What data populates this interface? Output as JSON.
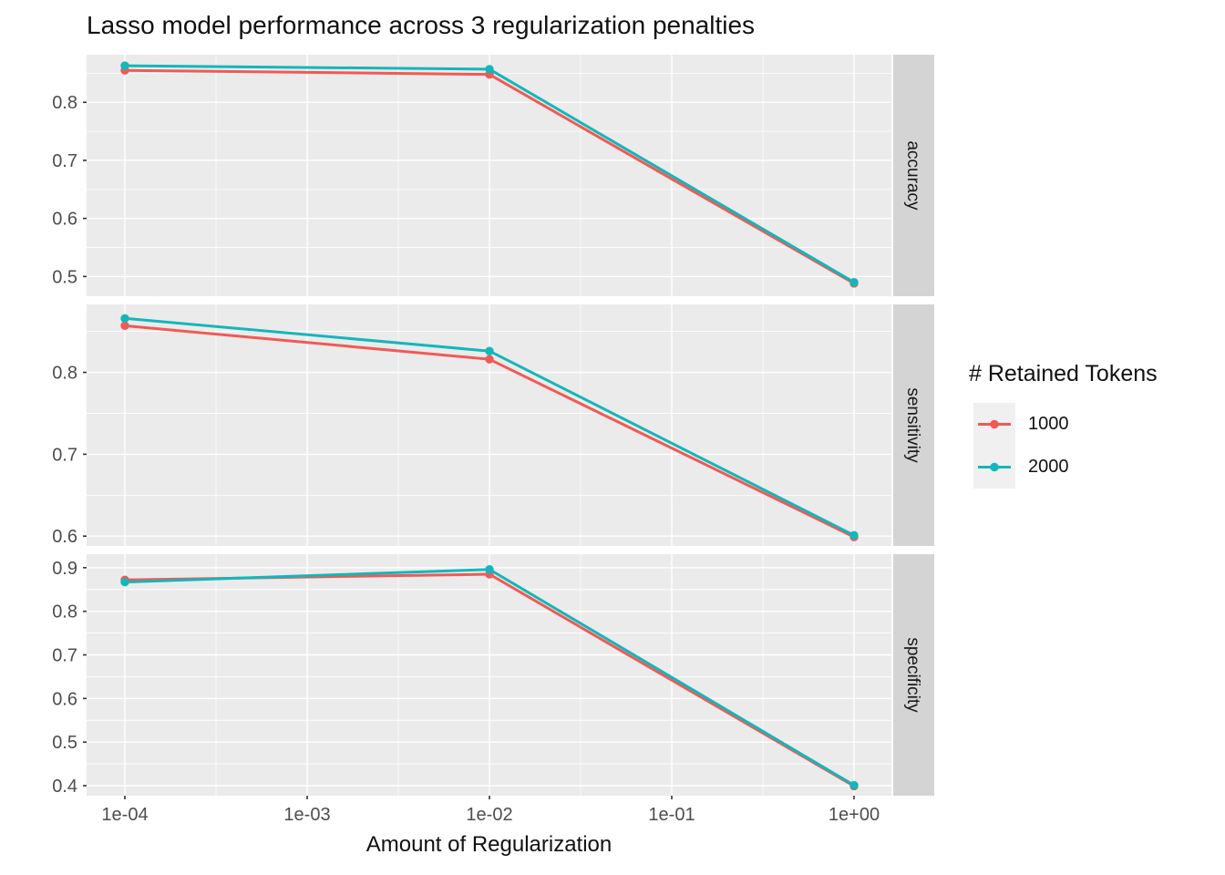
{
  "title": "Lasso model performance across 3 regularization penalties",
  "x_axis": {
    "title": "Amount of Regularization",
    "tick_labels": [
      "1e-04",
      "1e-03",
      "1e-02",
      "1e-01",
      "1e+00"
    ]
  },
  "legend": {
    "title": "# Retained Tokens",
    "entries": [
      {
        "label": "1000",
        "color": "#F05A55"
      },
      {
        "label": "2000",
        "color": "#14B6BA"
      }
    ]
  },
  "colors": {
    "panel_bg": "#EBEBEB",
    "strip_bg": "#D4D4D4",
    "grid_major": "#FFFFFF",
    "grid_minor": "#FFFFFF",
    "axis_text": "#4D4D4D",
    "tick_mark": "#333333",
    "strip_text": "#1A1A1A",
    "series_1000": "#F05A55",
    "series_2000": "#14B6BA"
  },
  "chart_data": {
    "type": "line",
    "title": "Lasso model performance across 3 regularization penalties",
    "xlabel": "Amount of Regularization",
    "x_scale": "log10",
    "grid": true,
    "legend_title": "# Retained Tokens",
    "legend_position": "right",
    "x": [
      0.0001,
      0.01,
      1
    ],
    "x_ticks": {
      "values": [
        0.0001,
        0.001,
        0.01,
        0.1,
        1
      ],
      "labels": [
        "1e-04",
        "1e-03",
        "1e-02",
        "1e-01",
        "1e+00"
      ]
    },
    "x_minor_log10": [
      -3.5,
      -2.5,
      -1.5,
      -0.5
    ],
    "facets": [
      {
        "label": "accuracy",
        "ylim": [
          0.466,
          0.882
        ],
        "yticks": [
          0.5,
          0.6,
          0.7,
          0.8
        ],
        "series": [
          {
            "name": "1000",
            "values": [
              0.855,
              0.848,
              0.488
            ]
          },
          {
            "name": "2000",
            "values": [
              0.863,
              0.857,
              0.49
            ]
          }
        ]
      },
      {
        "label": "sensitivity",
        "ylim": [
          0.588,
          0.883
        ],
        "yticks": [
          0.6,
          0.7,
          0.8
        ],
        "series": [
          {
            "name": "1000",
            "values": [
              0.857,
              0.816,
              0.599
            ]
          },
          {
            "name": "2000",
            "values": [
              0.866,
              0.826,
              0.601
            ]
          }
        ]
      },
      {
        "label": "specificity",
        "ylim": [
          0.377,
          0.931
        ],
        "yticks": [
          0.4,
          0.5,
          0.6,
          0.7,
          0.8,
          0.9
        ],
        "series": [
          {
            "name": "1000",
            "values": [
              0.872,
              0.885,
              0.399
            ]
          },
          {
            "name": "2000",
            "values": [
              0.867,
              0.896,
              0.401
            ]
          }
        ]
      }
    ]
  }
}
